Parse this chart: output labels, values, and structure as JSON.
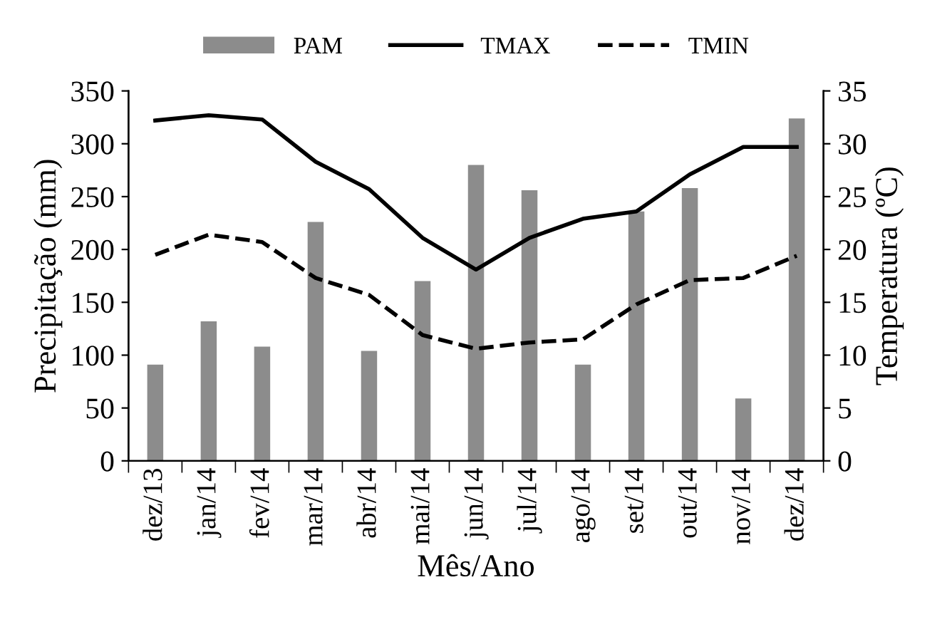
{
  "chart_data": {
    "type": "bar",
    "xlabel": "Mês/Ano",
    "ylabel": "Precipitação (mm)",
    "y2label": "Temperatura (ºC)",
    "categories": [
      "dez/13",
      "jan/14",
      "fev/14",
      "mar/14",
      "abr/14",
      "mai/14",
      "jun/14",
      "jul/14",
      "ago/14",
      "set/14",
      "out/14",
      "nov/14",
      "dez/14"
    ],
    "series": [
      {
        "name": "PAM",
        "color": "#8c8c8c",
        "values": [
          91,
          132,
          108,
          226,
          104,
          170,
          280,
          256,
          91,
          236,
          258,
          59,
          324
        ]
      },
      {
        "name": "TMAX",
        "type": "line",
        "axis": "y2",
        "color": "#000000",
        "line_style": "solid",
        "values": [
          32.2,
          32.7,
          32.3,
          28.3,
          25.7,
          21.1,
          18.1,
          21.1,
          22.9,
          23.6,
          27.1,
          29.7,
          29.7
        ]
      },
      {
        "name": "TMIN",
        "type": "line",
        "axis": "y2",
        "color": "#000000",
        "line_style": "dashed",
        "values": [
          19.5,
          21.4,
          20.7,
          17.3,
          15.7,
          11.9,
          10.6,
          11.2,
          11.5,
          14.8,
          17.1,
          17.3,
          19.4
        ]
      }
    ],
    "ylim": [
      0,
      350
    ],
    "yticks": [
      0,
      50,
      100,
      150,
      200,
      250,
      300,
      350
    ],
    "y2lim": [
      0,
      35
    ],
    "y2ticks": [
      0,
      5,
      10,
      15,
      20,
      25,
      30,
      35
    ],
    "grid": false,
    "legend": "top"
  }
}
